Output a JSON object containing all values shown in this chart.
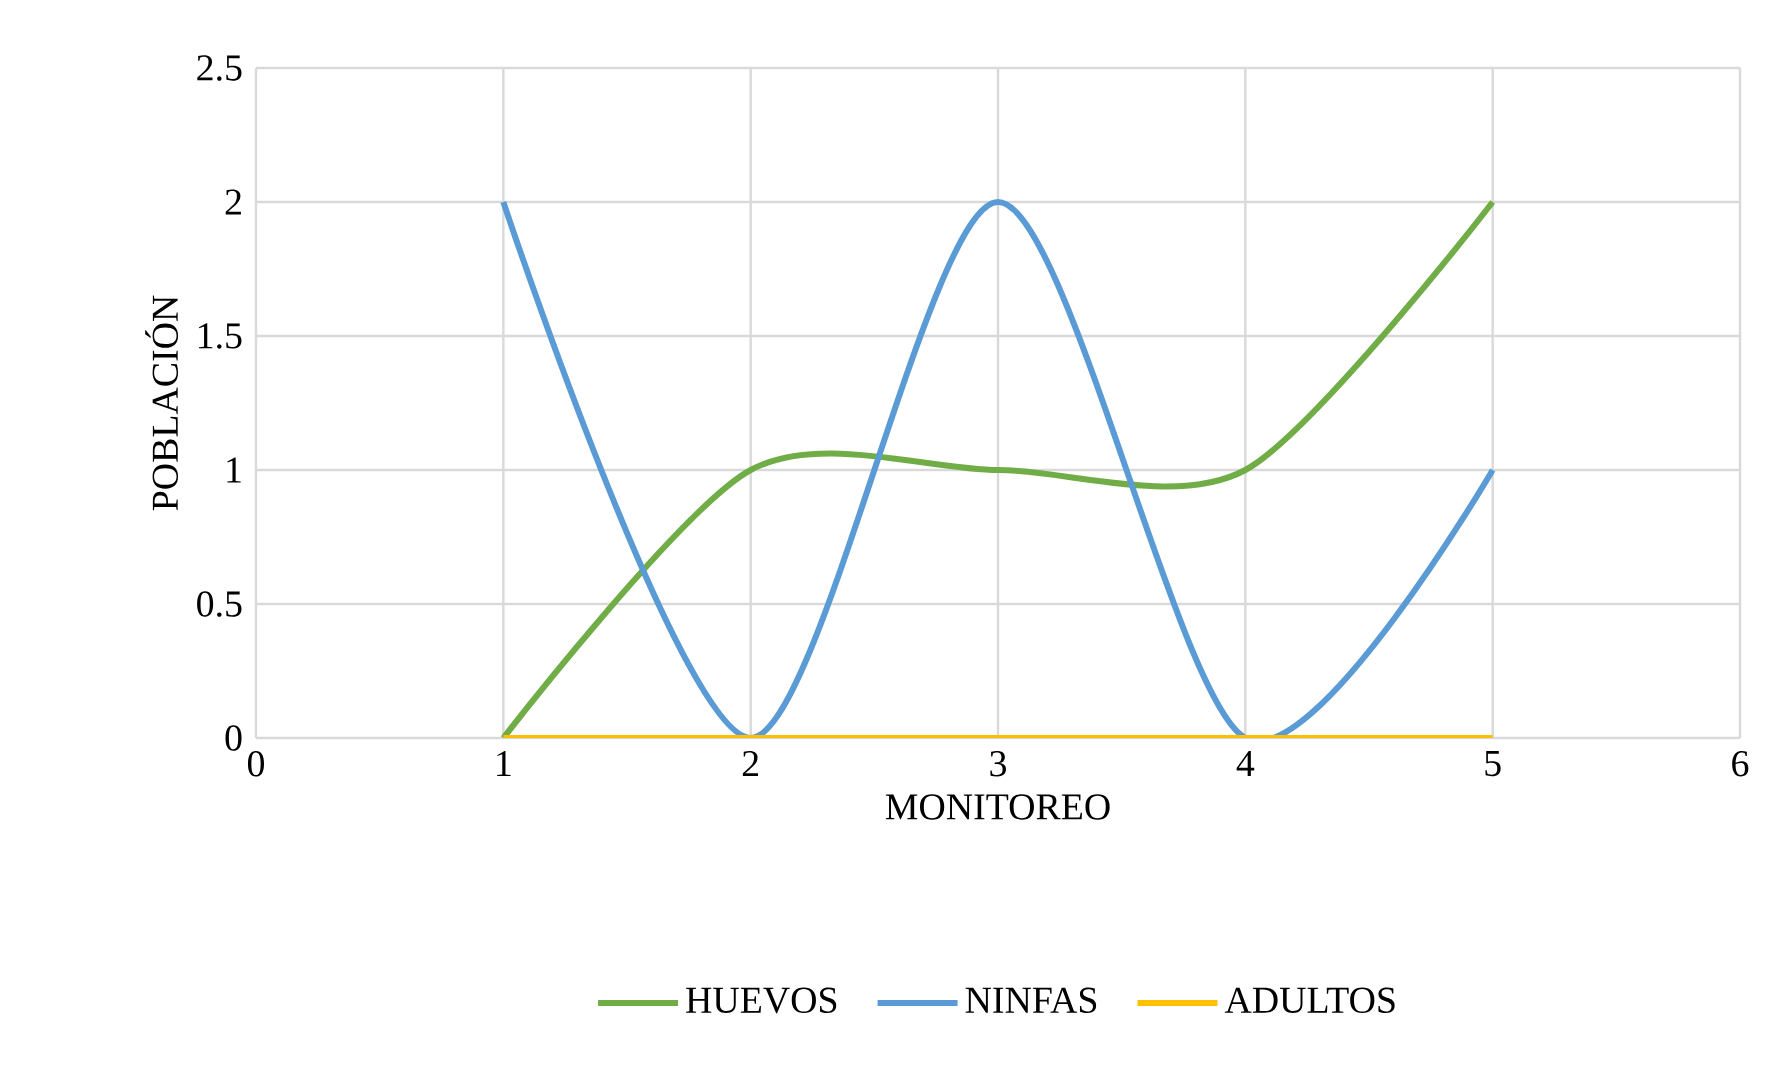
{
  "chart_data": {
    "type": "line",
    "xlabel": "MONITOREO",
    "ylabel": "POBLACIÓN",
    "x": [
      1,
      2,
      3,
      4,
      5
    ],
    "series": [
      {
        "name": "HUEVOS",
        "color": "#70ad47",
        "values": [
          0,
          1,
          1,
          1,
          2
        ]
      },
      {
        "name": "NINFAS",
        "color": "#5b9bd5",
        "values": [
          2,
          0,
          2,
          0,
          1
        ]
      },
      {
        "name": "ADULTOS",
        "color": "#ffc000",
        "values": [
          0,
          0,
          0,
          0,
          0
        ]
      }
    ],
    "xlim": [
      0,
      6
    ],
    "xticks": [
      0,
      1,
      2,
      3,
      4,
      5,
      6
    ],
    "ylim": [
      0,
      2.5
    ],
    "yticks": [
      0,
      0.5,
      1,
      1.5,
      2,
      2.5
    ],
    "grid": true,
    "legend": "bottom"
  }
}
